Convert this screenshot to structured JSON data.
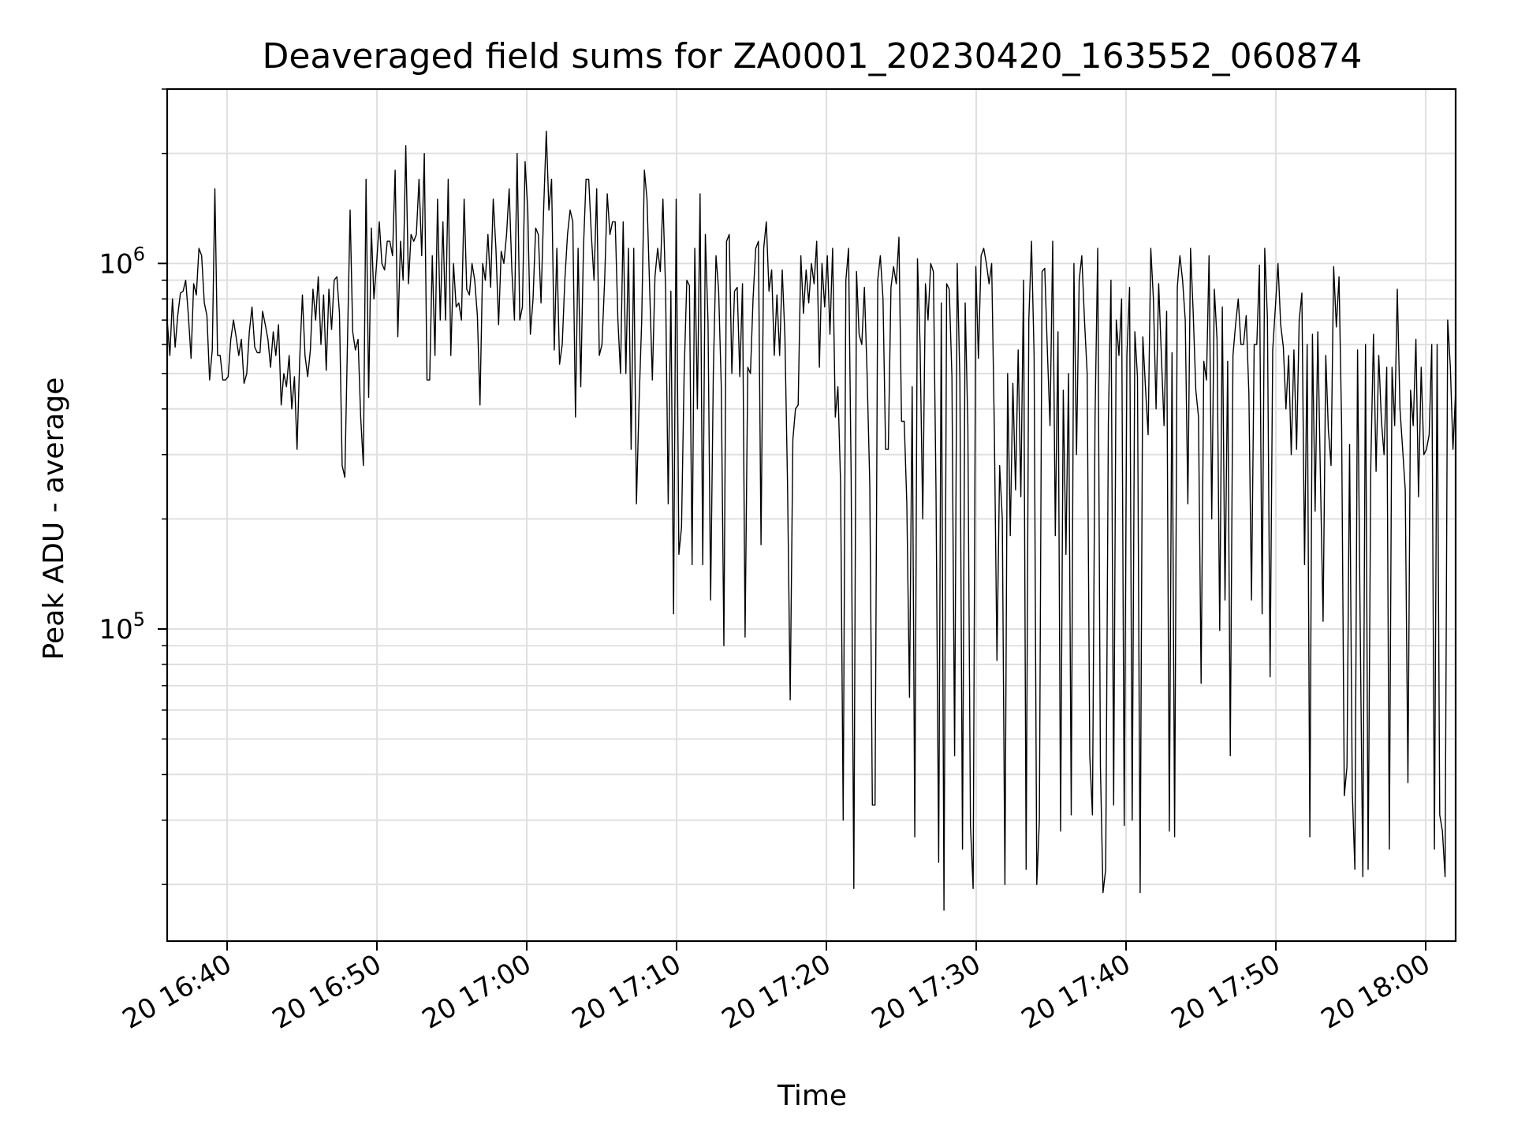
{
  "chart_data": {
    "type": "line",
    "title": "Deaveraged field sums for ZA0001_20230420_163552_060874",
    "xlabel": "Time",
    "ylabel": "Peak ADU - average",
    "yscale": "log",
    "ylim": [
      14000,
      3000000
    ],
    "xlim_minutes_from_1640": [
      -4,
      82
    ],
    "x_ticks": [
      {
        "label": "20 16:40",
        "minute": 0
      },
      {
        "label": "20 16:50",
        "minute": 10
      },
      {
        "label": "20 17:00",
        "minute": 20
      },
      {
        "label": "20 17:10",
        "minute": 30
      },
      {
        "label": "20 17:20",
        "minute": 40
      },
      {
        "label": "20 17:30",
        "minute": 50
      },
      {
        "label": "20 17:40",
        "minute": 60
      },
      {
        "label": "20 17:50",
        "minute": 70
      },
      {
        "label": "20 18:00",
        "minute": 80
      }
    ],
    "y_ticks": [
      {
        "base": "10",
        "exp": "5",
        "value": 100000
      },
      {
        "base": "10",
        "exp": "6",
        "value": 1000000
      }
    ],
    "grid": true,
    "line_color": "#000000",
    "grid_color": "#e0e0e0",
    "series": [
      {
        "x_start_minute": -4,
        "x_end_minute": 82,
        "values": [
          700000,
          560000,
          800000,
          590000,
          720000,
          830000,
          840000,
          900000,
          720000,
          550000,
          880000,
          820000,
          1100000,
          1050000,
          780000,
          720000,
          480000,
          580000,
          1600000,
          560000,
          560000,
          480000,
          480000,
          490000,
          620000,
          700000,
          630000,
          560000,
          620000,
          470000,
          500000,
          650000,
          760000,
          590000,
          570000,
          570000,
          740000,
          680000,
          620000,
          520000,
          650000,
          560000,
          680000,
          410000,
          500000,
          460000,
          560000,
          400000,
          490000,
          310000,
          550000,
          820000,
          560000,
          490000,
          580000,
          850000,
          700000,
          920000,
          600000,
          820000,
          510000,
          850000,
          660000,
          900000,
          920000,
          730000,
          280000,
          260000,
          600000,
          1400000,
          650000,
          580000,
          620000,
          380000,
          280000,
          1700000,
          430000,
          1250000,
          800000,
          1000000,
          1300000,
          1000000,
          960000,
          1150000,
          1150000,
          1050000,
          1800000,
          630000,
          1150000,
          900000,
          2100000,
          880000,
          1200000,
          1150000,
          1200000,
          1700000,
          1050000,
          2000000,
          480000,
          480000,
          1050000,
          560000,
          1500000,
          700000,
          1300000,
          700000,
          1700000,
          560000,
          1000000,
          760000,
          780000,
          700000,
          1500000,
          850000,
          820000,
          1000000,
          900000,
          720000,
          410000,
          1000000,
          900000,
          1200000,
          860000,
          1500000,
          1100000,
          680000,
          1080000,
          1000000,
          1200000,
          1600000,
          960000,
          700000,
          2000000,
          700000,
          760000,
          1900000,
          1400000,
          640000,
          800000,
          1250000,
          1200000,
          780000,
          1400000,
          2300000,
          1400000,
          1700000,
          580000,
          1100000,
          530000,
          600000,
          900000,
          1200000,
          1400000,
          1300000,
          380000,
          1100000,
          460000,
          1100000,
          1700000,
          1700000,
          1200000,
          900000,
          1600000,
          560000,
          600000,
          900000,
          1550000,
          1200000,
          1300000,
          1300000,
          700000,
          500000,
          1300000,
          500000,
          1100000,
          310000,
          1100000,
          220000,
          420000,
          700000,
          1800000,
          1500000,
          850000,
          480000,
          920000,
          1100000,
          950000,
          1500000,
          850000,
          220000,
          840000,
          110000,
          1500000,
          160000,
          190000,
          500000,
          900000,
          870000,
          150000,
          1100000,
          400000,
          1550000,
          150000,
          1200000,
          690000,
          120000,
          500000,
          1050000,
          850000,
          460000,
          90000,
          1150000,
          1200000,
          500000,
          840000,
          860000,
          490000,
          880000,
          95000,
          520000,
          500000,
          800000,
          1100000,
          1150000,
          170000,
          1100000,
          1300000,
          840000,
          960000,
          560000,
          820000,
          560000,
          960000,
          630000,
          250000,
          64000,
          330000,
          400000,
          410000,
          1050000,
          730000,
          960000,
          780000,
          1000000,
          880000,
          1150000,
          520000,
          1000000,
          760000,
          1050000,
          640000,
          1100000,
          380000,
          460000,
          250000,
          30000,
          900000,
          1100000,
          260000,
          19500,
          950000,
          640000,
          600000,
          860000,
          500000,
          250000,
          33000,
          33000,
          900000,
          1050000,
          800000,
          310000,
          310000,
          860000,
          980000,
          880000,
          1180000,
          370000,
          370000,
          220000,
          65000,
          460000,
          27000,
          1030000,
          600000,
          200000,
          880000,
          700000,
          1000000,
          950000,
          240000,
          23000,
          780000,
          17000,
          880000,
          850000,
          490000,
          45000,
          1000000,
          480000,
          25000,
          780000,
          360000,
          29000,
          19500,
          980000,
          550000,
          1050000,
          1100000,
          1000000,
          880000,
          1000000,
          350000,
          82000,
          280000,
          200000,
          20000,
          500000,
          180000,
          470000,
          240000,
          580000,
          230000,
          900000,
          22000,
          700000,
          1150000,
          560000,
          20000,
          30000,
          950000,
          970000,
          580000,
          360000,
          1150000,
          180000,
          650000,
          28000,
          450000,
          160000,
          500000,
          31000,
          1000000,
          300000,
          900000,
          1050000,
          700000,
          500000,
          45000,
          31000,
          380000,
          1100000,
          42000,
          19000,
          22000,
          370000,
          900000,
          33000,
          700000,
          560000,
          800000,
          29000,
          560000,
          860000,
          30000,
          650000,
          490000,
          19000,
          630000,
          460000,
          340000,
          1100000,
          800000,
          400000,
          880000,
          560000,
          360000,
          740000,
          28000,
          570000,
          27000,
          860000,
          1050000,
          900000,
          700000,
          220000,
          1100000,
          740000,
          450000,
          380000,
          71000,
          540000,
          480000,
          1050000,
          200000,
          850000,
          620000,
          99000,
          760000,
          120000,
          540000,
          45000,
          560000,
          680000,
          800000,
          600000,
          600000,
          720000,
          440000,
          120000,
          600000,
          600000,
          990000,
          110000,
          1100000,
          710000,
          74000,
          580000,
          760000,
          1000000,
          680000,
          590000,
          400000,
          560000,
          300000,
          580000,
          310000,
          700000,
          830000,
          150000,
          600000,
          27000,
          640000,
          210000,
          650000,
          260000,
          105000,
          560000,
          350000,
          280000,
          980000,
          670000,
          920000,
          360000,
          35000,
          42000,
          320000,
          36000,
          22000,
          580000,
          100000,
          21000,
          600000,
          22000,
          280000,
          640000,
          270000,
          560000,
          370000,
          300000,
          520000,
          25000,
          520000,
          360000,
          850000,
          400000,
          310000,
          240000,
          38000,
          450000,
          360000,
          620000,
          230000,
          520000,
          300000,
          310000,
          340000,
          600000,
          25000,
          600000,
          31000,
          28000,
          21000,
          700000,
          520000,
          310000,
          450000
        ]
      }
    ]
  }
}
